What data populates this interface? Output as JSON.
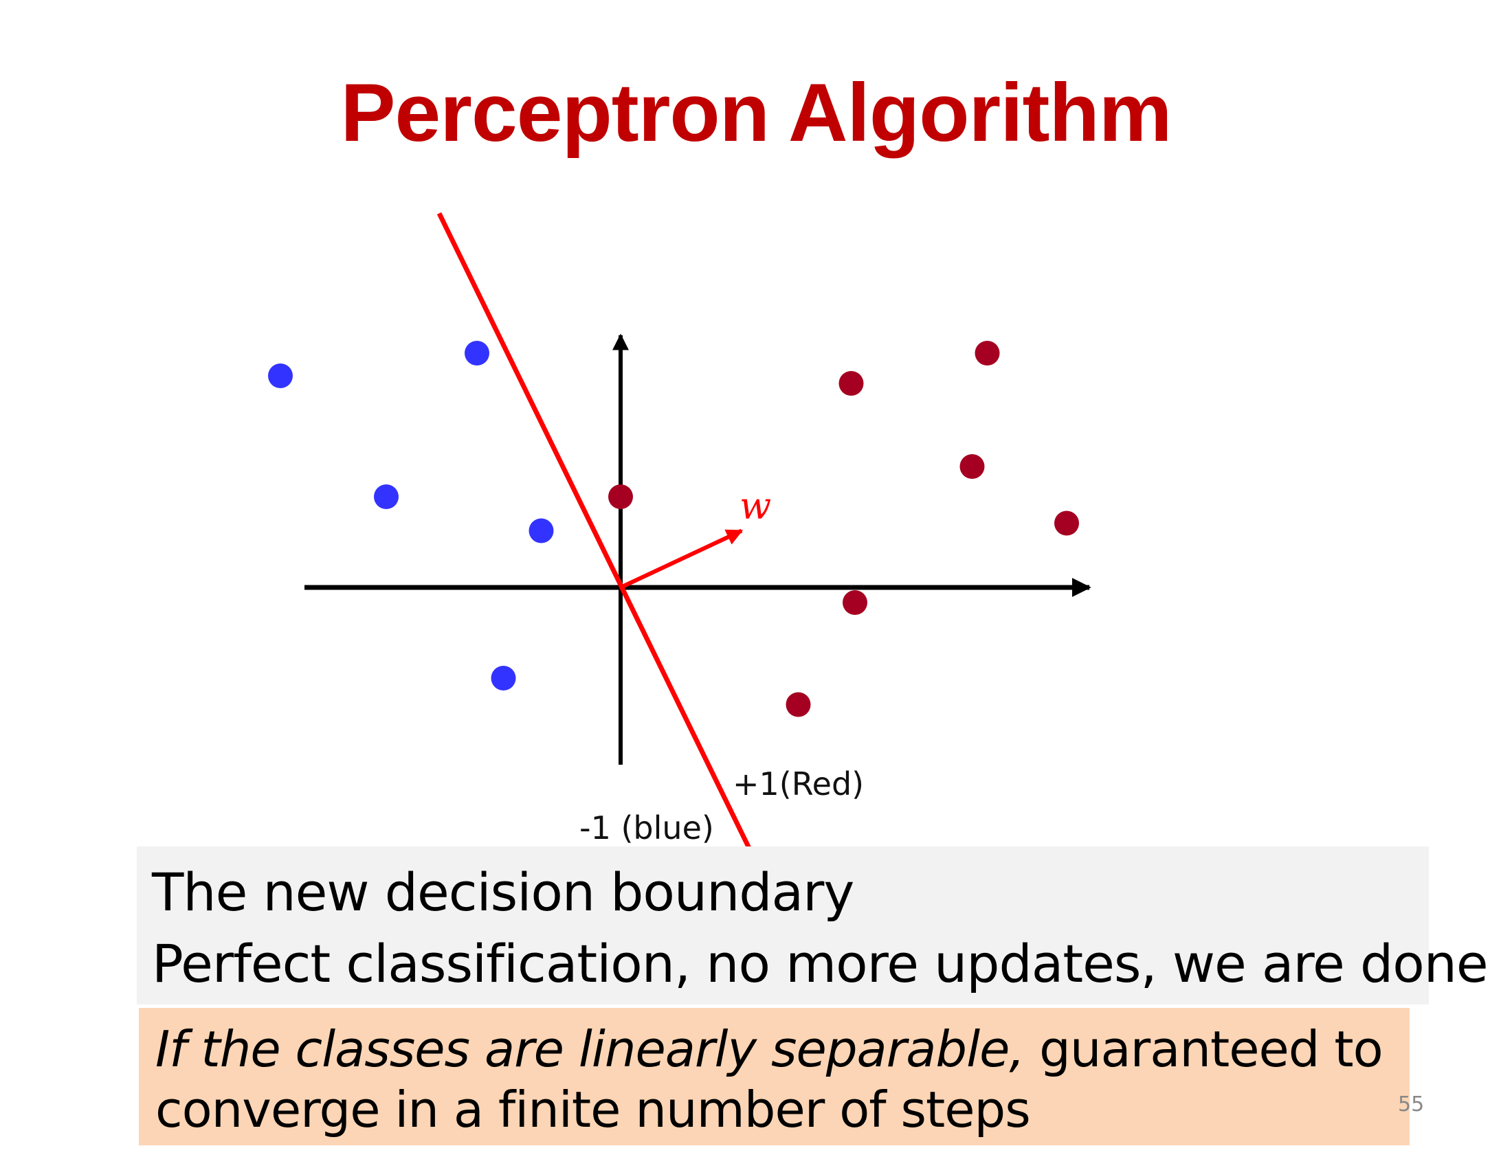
{
  "slide": {
    "title": "Perceptron Algorithm",
    "page_number": "55"
  },
  "colors": {
    "title": "#c00000",
    "boundary": "#ff0000",
    "axis": "#000000",
    "positive_point": "#a50021",
    "negative_point": "#3333ff",
    "caption_box": "#f2f2f2",
    "note_box": "#fbd5b5"
  },
  "diagram": {
    "weight_label": "w",
    "positive_class_label": "+1(Red)",
    "negative_class_label": "-1 (blue)",
    "negative_points": [
      {
        "x": -4.5,
        "y": 2.8
      },
      {
        "x": -1.9,
        "y": 3.1
      },
      {
        "x": -3.1,
        "y": 1.2
      },
      {
        "x": -1.05,
        "y": 0.75
      },
      {
        "x": -1.55,
        "y": -1.2
      }
    ],
    "positive_points": [
      {
        "x": 3.05,
        "y": 2.7
      },
      {
        "x": 4.85,
        "y": 3.1
      },
      {
        "x": 4.65,
        "y": 1.6
      },
      {
        "x": 5.9,
        "y": 0.85
      },
      {
        "x": 0.0,
        "y": 1.2
      },
      {
        "x": 3.1,
        "y": -0.2
      },
      {
        "x": 2.35,
        "y": -1.55
      }
    ],
    "weight_vector": {
      "x": 1.6,
      "y": 0.75
    },
    "boundary_line": {
      "from": {
        "x": -2.4,
        "y": 4.95
      },
      "to": {
        "x": 1.7,
        "y": -3.45
      }
    }
  },
  "caption": {
    "line1": "The new decision boundary",
    "line2": "Perfect classification, no more updates, we are done"
  },
  "note": {
    "emphasis": "If the classes are linearly separable,",
    "rest": " guaranteed to",
    "line2": "converge in a finite number of steps"
  }
}
